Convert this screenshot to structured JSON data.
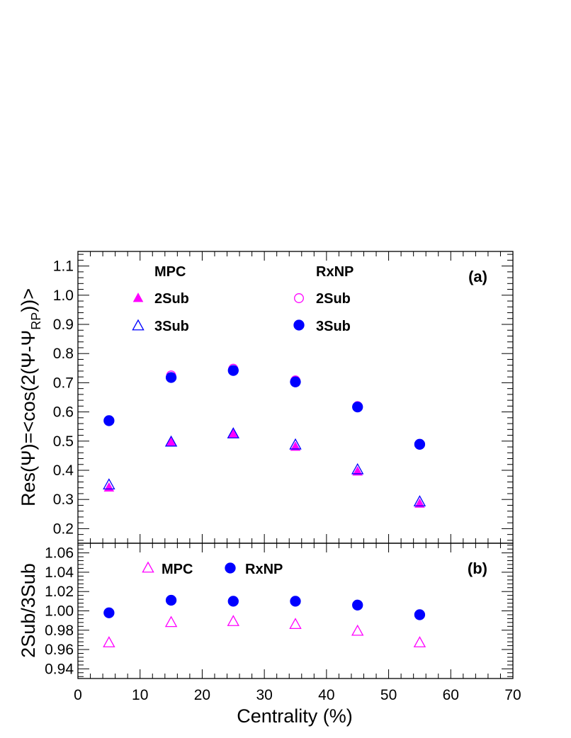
{
  "chart_data": [
    {
      "type": "scatter",
      "panel_label": "(a)",
      "ylabel": "Res(Ψ)=<cos(2(Ψ-Ψ_RP))>",
      "ylabel_main": "Res(Ψ)=<cos(2(Ψ-Ψ",
      "ylabel_sub": "RP",
      "ylabel_tail": "))>",
      "xlim": [
        0,
        70
      ],
      "ylim": [
        0.15,
        1.15
      ],
      "ytick_values": [
        0.2,
        0.3,
        0.4,
        0.5,
        0.6,
        0.7,
        0.8,
        0.9,
        1.0,
        1.1
      ],
      "ytick_labels": [
        "0.2",
        "0.3",
        "0.4",
        "0.5",
        "0.6",
        "0.7",
        "0.8",
        "0.9",
        "1.0",
        "1.1"
      ],
      "legend": {
        "placement": "top-left",
        "group_headers": [
          "MPC",
          "RxNP"
        ]
      },
      "x": [
        5,
        15,
        25,
        35,
        45,
        55
      ],
      "series": [
        {
          "name": "2Sub",
          "group": "MPC",
          "marker": "triangle-filled",
          "color": "#ff00ff",
          "values": [
            0.34,
            0.495,
            0.525,
            0.48,
            0.395,
            0.285
          ]
        },
        {
          "name": "3Sub",
          "group": "MPC",
          "marker": "triangle-open",
          "color": "#0000ff",
          "values": [
            0.35,
            0.497,
            0.525,
            0.487,
            0.402,
            0.292
          ]
        },
        {
          "name": "2Sub",
          "group": "RxNP",
          "marker": "circle-open",
          "color": "#ff00ff",
          "values": [
            0.57,
            0.725,
            0.748,
            0.708,
            0.62,
            0.49
          ]
        },
        {
          "name": "3Sub",
          "group": "RxNP",
          "marker": "circle-filled",
          "color": "#0000ff",
          "values": [
            0.57,
            0.718,
            0.742,
            0.703,
            0.617,
            0.489
          ]
        }
      ]
    },
    {
      "type": "scatter",
      "panel_label": "(b)",
      "ylabel": "2Sub/3Sub",
      "xlabel": "Centrality (%)",
      "xlim": [
        0,
        70
      ],
      "xtick_values": [
        0,
        10,
        20,
        30,
        40,
        50,
        60,
        70
      ],
      "xtick_labels": [
        "0",
        "10",
        "20",
        "30",
        "40",
        "50",
        "60",
        "70"
      ],
      "ylim": [
        0.93,
        1.07
      ],
      "ytick_values": [
        0.94,
        0.96,
        0.98,
        1.0,
        1.02,
        1.04,
        1.06
      ],
      "ytick_labels": [
        "0.94",
        "0.96",
        "0.98",
        "1.00",
        "1.02",
        "1.04",
        "1.06"
      ],
      "legend": {
        "placement": "top-left"
      },
      "x": [
        5,
        15,
        25,
        35,
        45,
        55
      ],
      "series": [
        {
          "name": "MPC",
          "marker": "triangle-open",
          "color": "#ff00ff",
          "values": [
            0.967,
            0.988,
            0.989,
            0.986,
            0.979,
            0.967
          ]
        },
        {
          "name": "RxNP",
          "marker": "circle-filled",
          "color": "#0000ff",
          "values": [
            0.998,
            1.011,
            1.01,
            1.01,
            1.006,
            0.996
          ]
        }
      ]
    }
  ]
}
